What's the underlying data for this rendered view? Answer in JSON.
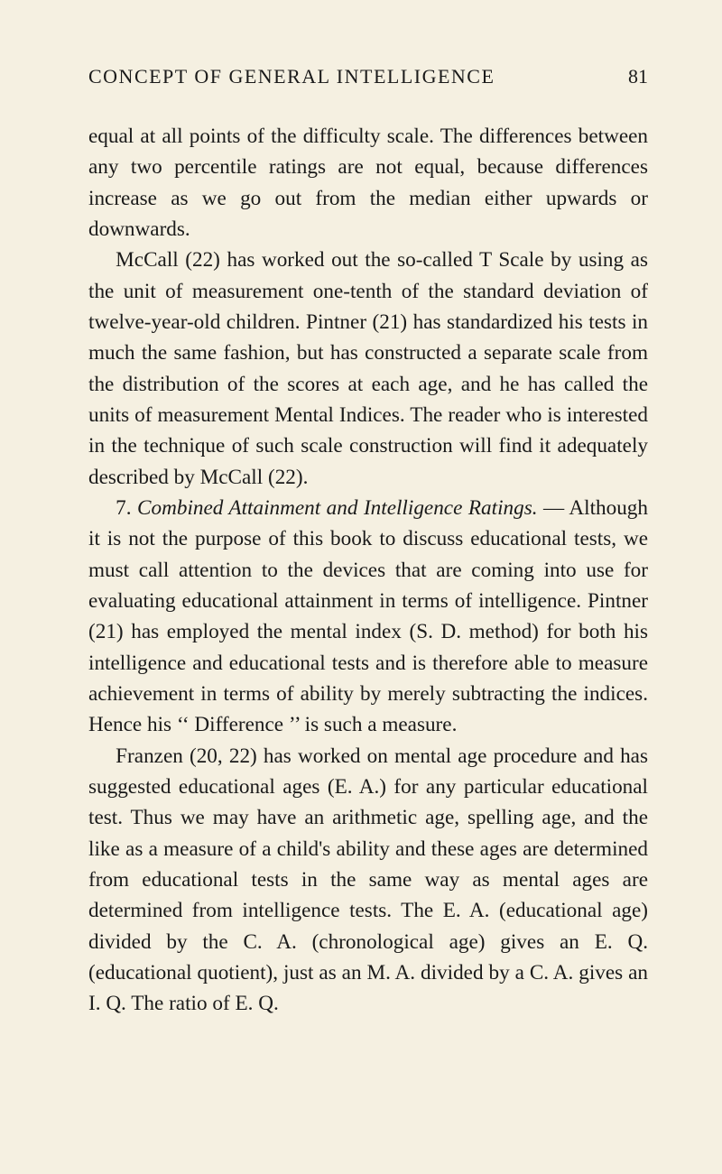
{
  "page": {
    "running_head": "CONCEPT OF GENERAL INTELLIGENCE",
    "number": "81"
  },
  "paragraphs": {
    "p1": "equal at all points of the difficulty scale. The differ­ences between any two percentile ratings are not equal, because differences increase as we go out from the median either upwards or downwards.",
    "p2": "McCall (22) has worked out the so-called T Scale by using as the unit of measurement one-tenth of the stand­ard deviation of twelve-year-old children. Pintner (21) has standardized his tests in much the same fashion, but has constructed a separate scale from the distribu­tion of the scores at each age, and he has called the units of measurement Mental Indices. The reader who is interested in the technique of such scale construction will find it adequately described by McCall (22).",
    "p3_number": "7. ",
    "p3_italic": "Combined Attainment and Intelligence Ratings.",
    "p3_rest": " — Although it is not the purpose of this book to dis­cuss educational tests, we must call attention to the devices that are coming into use for evaluating educa­tional attainment in terms of intelligence. Pintner (21) has employed the mental index (S. D. method) for both his intelligence and educational tests and is therefore able to measure achievement in terms of ability by merely subtracting the indices. Hence his ‘‘ Differ­ence ’’ is such a measure.",
    "p4": "Franzen (20, 22) has worked on mental age procedure and has suggested educational ages (E. A.) for any particular educational test. Thus we may have an arithmetic age, spelling age, and the like as a measure of a child's ability and these ages are determined from educational tests in the same way as mental ages are determined from intelligence tests. The E. A. (educa­tional age) divided by the C. A. (chronological age) gives an E. Q. (educational quotient), just as an M. A. divided by a C. A. gives an I. Q. The ratio of E. Q."
  },
  "colors": {
    "background": "#f5f0e1",
    "text": "#1a1a1a"
  },
  "typography": {
    "body_fontsize": 23.2,
    "header_fontsize": 22,
    "line_height": 1.48,
    "font_family": "Georgia, Times New Roman, serif"
  }
}
